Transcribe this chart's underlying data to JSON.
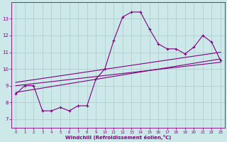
{
  "xlabel": "Windchill (Refroidissement éolien,°C)",
  "bg_color": "#cce8e8",
  "line_color": "#800080",
  "grid_color": "#aacccc",
  "xlim": [
    -0.5,
    23.5
  ],
  "ylim": [
    6.5,
    14.0
  ],
  "xticks": [
    0,
    1,
    2,
    3,
    4,
    5,
    6,
    7,
    8,
    9,
    10,
    11,
    12,
    13,
    14,
    15,
    16,
    17,
    18,
    19,
    20,
    21,
    22,
    23
  ],
  "yticks": [
    7,
    8,
    9,
    10,
    11,
    12,
    13
  ],
  "main_x": [
    0,
    1,
    2,
    3,
    4,
    5,
    6,
    7,
    8,
    9,
    10,
    11,
    12,
    13,
    14,
    15,
    16,
    17,
    18,
    19,
    20,
    21,
    22,
    23
  ],
  "main_y": [
    8.5,
    9.0,
    9.0,
    7.5,
    7.5,
    7.7,
    7.5,
    7.8,
    7.8,
    9.4,
    10.0,
    11.7,
    13.1,
    13.4,
    13.4,
    12.4,
    11.5,
    11.2,
    11.2,
    10.9,
    11.3,
    12.0,
    11.6,
    10.5
  ],
  "line2_x": [
    0,
    23
  ],
  "line2_y": [
    8.6,
    10.6
  ],
  "line3_x": [
    0,
    23
  ],
  "line3_y": [
    9.2,
    11.0
  ],
  "line4_x": [
    0,
    23
  ],
  "line4_y": [
    9.0,
    10.4
  ]
}
